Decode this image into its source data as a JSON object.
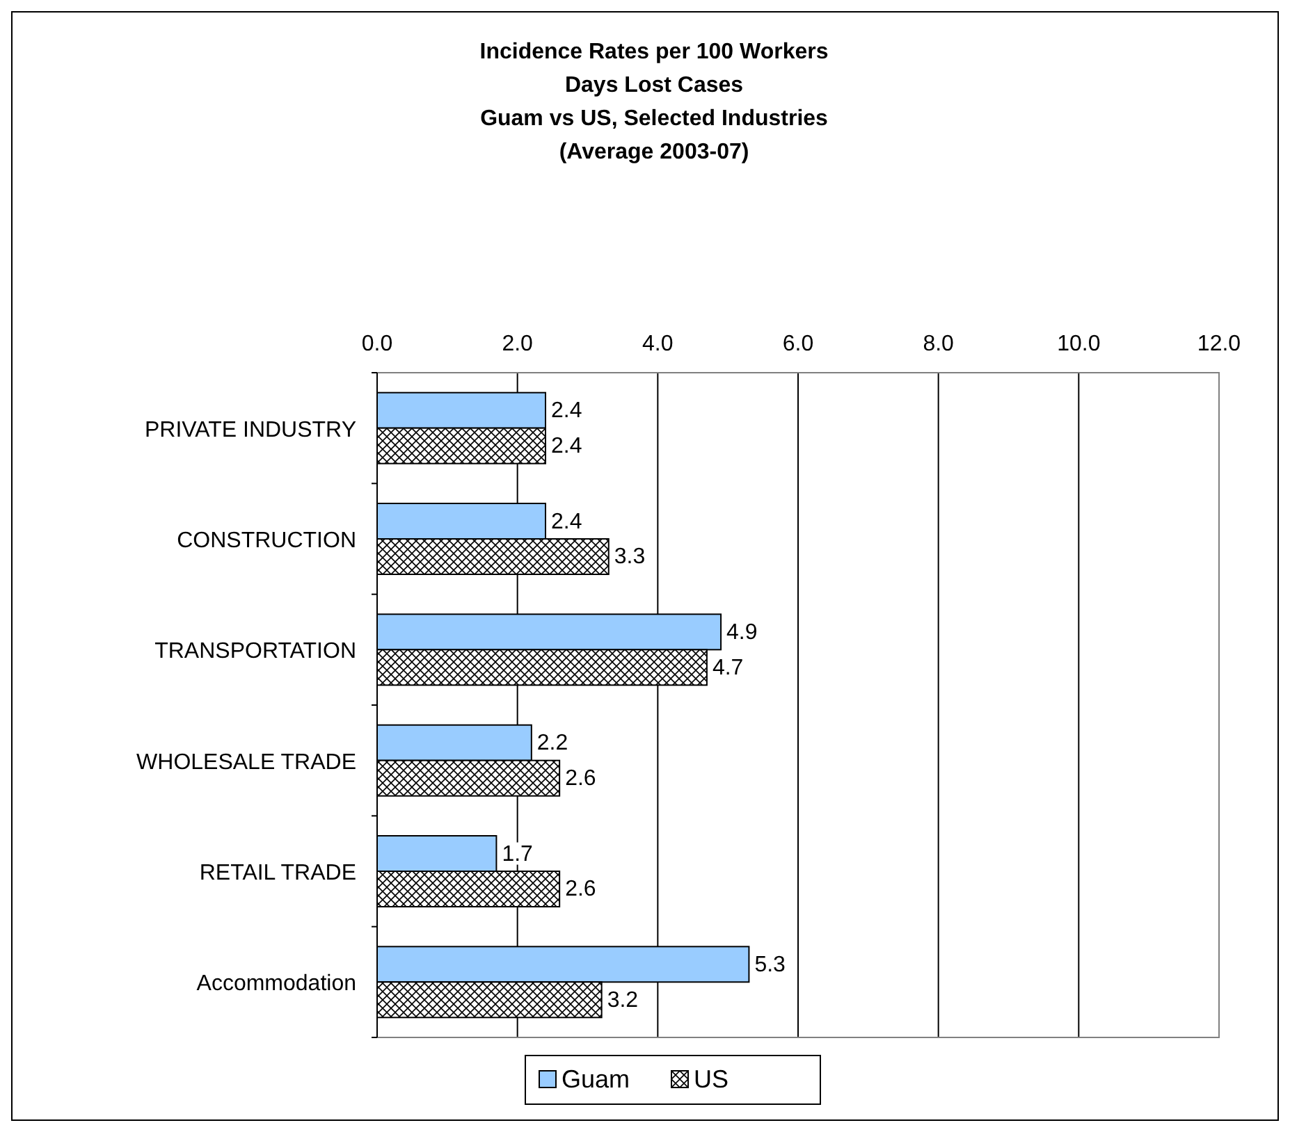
{
  "chart_data": {
    "type": "bar",
    "orientation": "horizontal",
    "title": "Incidence Rates per 100 Workers\nDays Lost Cases\nGuam vs US, Selected Industries\n(Average 2003-07)",
    "categories": [
      "PRIVATE  INDUSTRY",
      "CONSTRUCTION",
      "TRANSPORTATION",
      "WHOLESALE TRADE",
      "RETAIL TRADE",
      "Accommodation"
    ],
    "series": [
      {
        "name": "Guam",
        "color": "#99ccff",
        "values": [
          2.4,
          2.4,
          4.9,
          2.2,
          1.7,
          5.3
        ]
      },
      {
        "name": "US",
        "color": "#000000",
        "values": [
          2.4,
          3.3,
          4.7,
          2.6,
          2.6,
          3.2
        ]
      }
    ],
    "xlim": [
      0,
      12
    ],
    "xticks": [
      {
        "value": 0,
        "label": "0.0"
      },
      {
        "value": 2,
        "label": "2.0"
      },
      {
        "value": 4,
        "label": "4.0"
      },
      {
        "value": 6,
        "label": "6.0"
      },
      {
        "value": 8,
        "label": "8.0"
      },
      {
        "value": 10,
        "label": "10.0"
      },
      {
        "value": 12,
        "label": "12.0"
      }
    ],
    "grid": "x",
    "legend": "bottom",
    "data_labels": true
  }
}
